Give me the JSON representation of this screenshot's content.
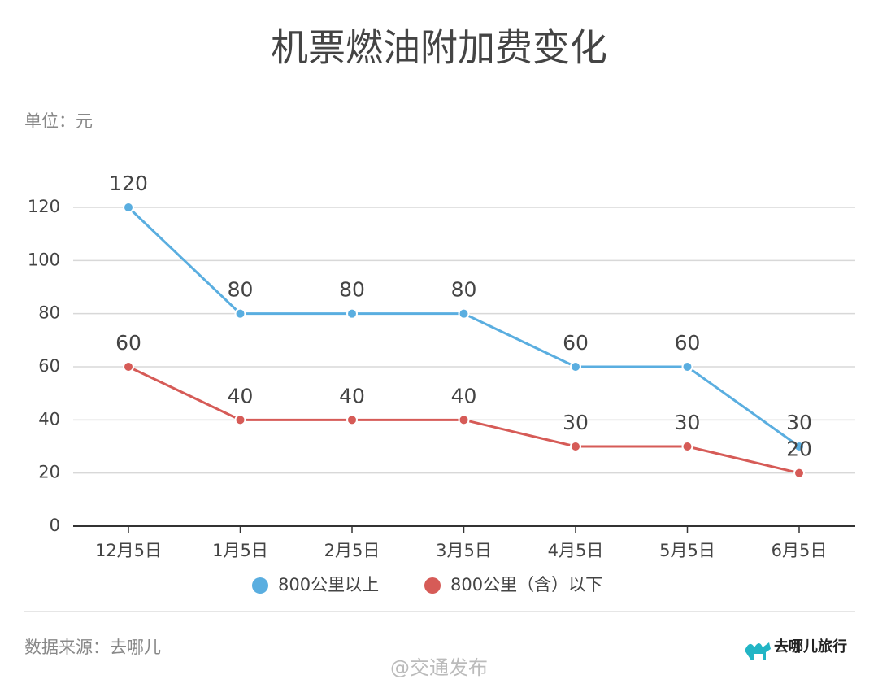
{
  "chart_data": {
    "type": "line",
    "title": "机票燃油附加费变化",
    "unit_label": "单位：元",
    "categories": [
      "12月5日",
      "1月5日",
      "2月5日",
      "3月5日",
      "4月5日",
      "5月5日",
      "6月5日"
    ],
    "series": [
      {
        "name": "800公里以上",
        "color": "#5aaee0",
        "values": [
          120,
          80,
          80,
          80,
          60,
          60,
          30
        ]
      },
      {
        "name": "800公里（含）以下",
        "color": "#d65b57",
        "values": [
          60,
          40,
          40,
          40,
          30,
          30,
          20
        ]
      }
    ],
    "ylim": [
      0,
      120
    ],
    "yticks": [
      0,
      20,
      40,
      60,
      80,
      100,
      120
    ],
    "grid": true,
    "legend": "bottom",
    "source": "数据来源：去哪儿",
    "logo": "去哪儿旅行",
    "watermark": "@交通发布"
  }
}
